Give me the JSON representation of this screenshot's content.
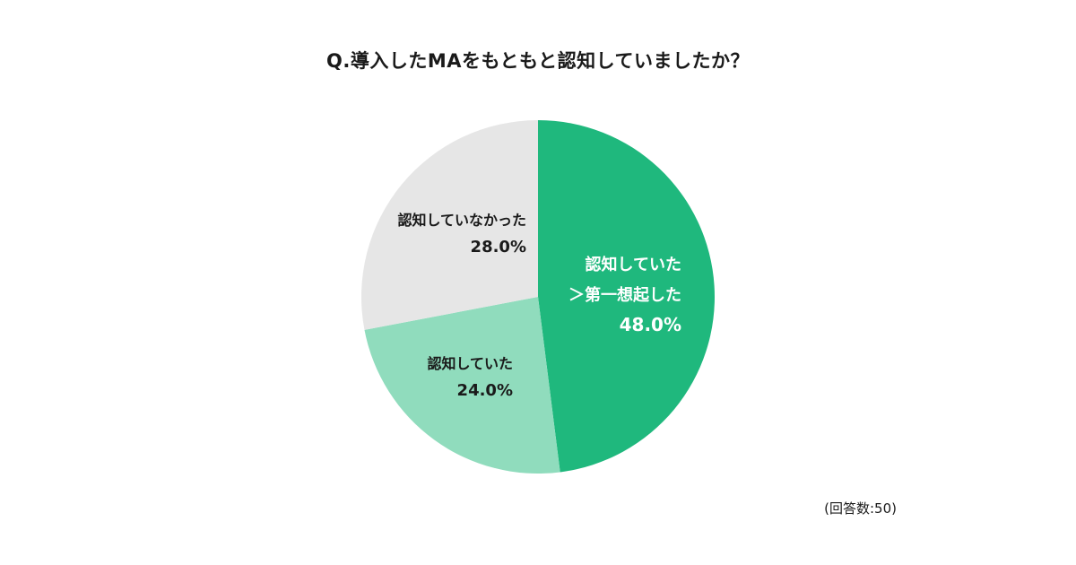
{
  "chart_data": {
    "type": "pie",
    "title": "Q.導入したMAをもともと認知していましたか？",
    "note": "(回答数:50)",
    "start": "top, clockwise",
    "slices": [
      {
        "label_lines": [
          "認知していた",
          "＞第一想起した"
        ],
        "value": 48.0,
        "display": "48.0%",
        "color": "#1fb87d",
        "text_color": "#ffffff"
      },
      {
        "label_lines": [
          "認知していた"
        ],
        "value": 24.0,
        "display": "24.0%",
        "color": "#90dcbd",
        "text_color": "#1a1a1a"
      },
      {
        "label_lines": [
          "認知していなかった"
        ],
        "value": 28.0,
        "display": "28.0%",
        "color": "#e6e6e6",
        "text_color": "#1a1a1a"
      }
    ]
  }
}
